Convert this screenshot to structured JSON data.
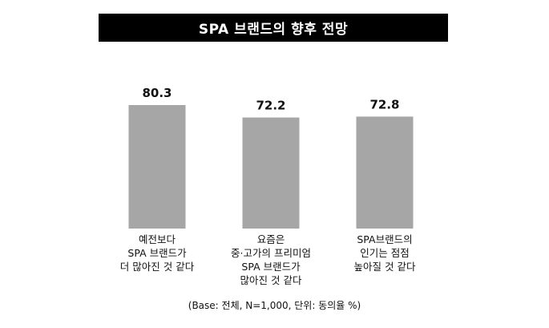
{
  "chart_data": {
    "type": "bar",
    "title": "SPA 브랜드의 향후 전망",
    "categories": [
      [
        "예전보다",
        "SPA 브랜드가",
        "더 많아진 것 같다"
      ],
      [
        "요즘은",
        "중·고가의 프리미엄",
        "SPA 브랜드가",
        "많아진 것 같다"
      ],
      [
        "SPA브랜드의",
        "인기는 점점",
        "높아질 것 같다"
      ]
    ],
    "values": [
      80.3,
      72.2,
      72.8
    ],
    "value_labels": [
      "80.3",
      "72.2",
      "72.8"
    ],
    "bar_color": "#a6a6a6",
    "grid": false,
    "legend": "none",
    "footnote": "(Base: 전체, N=1,000, 단위: 동의율 %)"
  }
}
